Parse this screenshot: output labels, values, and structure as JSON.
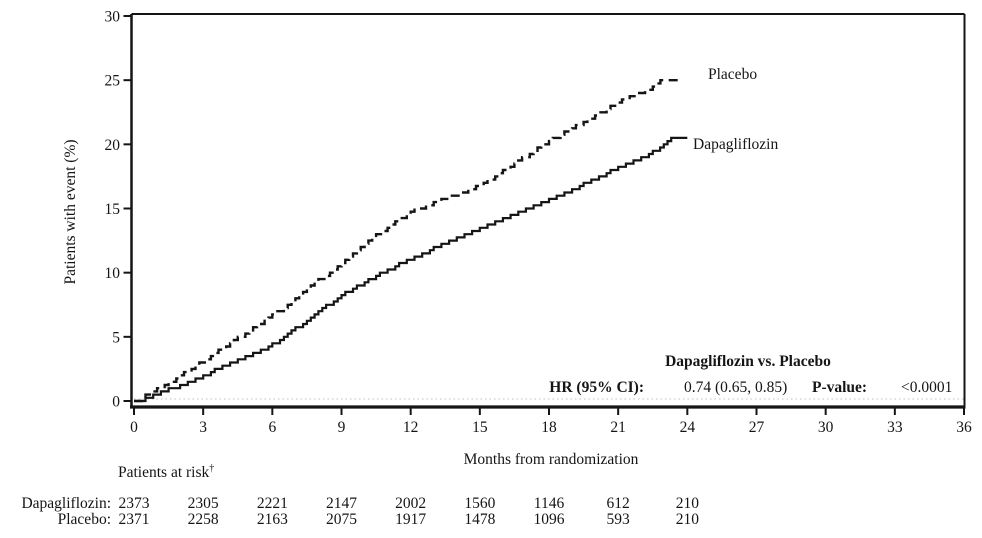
{
  "chart_data": {
    "type": "line",
    "subtype": "kaplan-meier-cumulative-incidence",
    "title": "",
    "xlabel": "Months from randomization",
    "ylabel": "Patients with event (%)",
    "xlim": [
      0,
      36
    ],
    "ylim": [
      0,
      30
    ],
    "xticks": [
      0,
      3,
      6,
      9,
      12,
      15,
      18,
      21,
      24,
      27,
      30,
      33,
      36
    ],
    "yticks": [
      0,
      5,
      10,
      15,
      20,
      25,
      30
    ],
    "grid": "zero-baseline-dotted-only",
    "legend_position": "curve-end-labels",
    "line_color": "#151515",
    "zero_line_color": "#d9caca",
    "series": [
      {
        "name": "Placebo",
        "style": "dashed",
        "x": [
          0,
          1.5,
          3,
          4.5,
          6,
          7.5,
          9,
          10.5,
          12,
          13.5,
          15,
          16.5,
          18,
          19.5,
          21,
          22.5,
          23,
          23.8
        ],
        "y": [
          0,
          1.5,
          3.2,
          5.0,
          6.8,
          8.8,
          10.9,
          13.0,
          14.9,
          15.9,
          16.9,
          18.6,
          20.4,
          21.9,
          23.4,
          24.6,
          25.2,
          25.2
        ]
      },
      {
        "name": "Dapagliflozin",
        "style": "solid",
        "x": [
          0,
          1.5,
          3,
          4.5,
          6,
          7.5,
          9,
          10.5,
          12,
          13.5,
          15,
          16.5,
          18,
          19.5,
          21,
          22.5,
          23.3,
          24
        ],
        "y": [
          0,
          1.0,
          2.1,
          3.3,
          4.5,
          6.4,
          8.4,
          9.9,
          11.2,
          12.4,
          13.6,
          14.7,
          15.8,
          17.0,
          18.3,
          19.5,
          20.6,
          20.6
        ]
      }
    ],
    "annotation": {
      "title": "Dapagliflozin vs. Placebo",
      "hr_label": "HR (95% CI):",
      "hr_value": "0.74 (0.65, 0.85)",
      "p_label": "P-value:",
      "p_value": "<0.0001"
    },
    "risk_table": {
      "header": "Patients at risk",
      "footnote_marker": "†",
      "months": [
        0,
        3,
        6,
        9,
        12,
        15,
        18,
        21,
        24
      ],
      "rows": [
        {
          "label": "Dapagliflozin:",
          "counts": [
            2373,
            2305,
            2221,
            2147,
            2002,
            1560,
            1146,
            612,
            210
          ]
        },
        {
          "label": "Placebo:",
          "counts": [
            2371,
            2258,
            2163,
            2075,
            1917,
            1478,
            1096,
            593,
            210
          ]
        }
      ]
    }
  }
}
